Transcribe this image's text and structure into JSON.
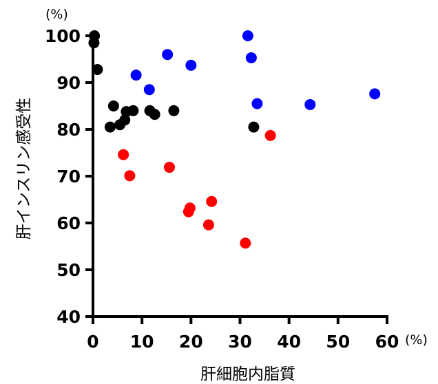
{
  "chart_data": {
    "type": "scatter",
    "title": "",
    "xlabel": "肝細胞内脂質",
    "ylabel": "肝インスリン感受性",
    "x_unit": "(%)",
    "y_unit": "(%)",
    "xlim": [
      0,
      60
    ],
    "ylim": [
      40,
      100
    ],
    "xticks": [
      "0",
      "10",
      "20",
      "30",
      "40",
      "50",
      "60"
    ],
    "yticks": [
      "40",
      "50",
      "60",
      "70",
      "80",
      "90",
      "100"
    ],
    "grid": false,
    "legend": "none",
    "series": [
      {
        "color": "#000000",
        "points": [
          {
            "x": 0.3,
            "y": 100.0
          },
          {
            "x": 0.2,
            "y": 98.5
          },
          {
            "x": 0.9,
            "y": 92.8
          },
          {
            "x": 4.2,
            "y": 85.0
          },
          {
            "x": 3.5,
            "y": 80.5
          },
          {
            "x": 5.5,
            "y": 81.0
          },
          {
            "x": 6.5,
            "y": 82.0
          },
          {
            "x": 6.8,
            "y": 83.8
          },
          {
            "x": 8.2,
            "y": 84.0
          },
          {
            "x": 11.6,
            "y": 84.0
          },
          {
            "x": 12.6,
            "y": 83.2
          },
          {
            "x": 16.5,
            "y": 84.0
          },
          {
            "x": 32.8,
            "y": 80.5
          }
        ]
      },
      {
        "color": "#0000ff",
        "points": [
          {
            "x": 15.2,
            "y": 96.0
          },
          {
            "x": 20.0,
            "y": 93.7
          },
          {
            "x": 8.8,
            "y": 91.6
          },
          {
            "x": 11.5,
            "y": 88.5
          },
          {
            "x": 31.6,
            "y": 100.0
          },
          {
            "x": 32.3,
            "y": 95.3
          },
          {
            "x": 33.5,
            "y": 85.5
          },
          {
            "x": 44.3,
            "y": 85.3
          },
          {
            "x": 57.5,
            "y": 87.6
          }
        ]
      },
      {
        "color": "#ff0000",
        "points": [
          {
            "x": 6.2,
            "y": 74.6
          },
          {
            "x": 7.5,
            "y": 70.1
          },
          {
            "x": 15.6,
            "y": 71.9
          },
          {
            "x": 36.2,
            "y": 78.7
          },
          {
            "x": 24.2,
            "y": 64.6
          },
          {
            "x": 19.8,
            "y": 63.2
          },
          {
            "x": 19.5,
            "y": 62.4
          },
          {
            "x": 23.6,
            "y": 59.6
          },
          {
            "x": 31.1,
            "y": 55.7
          }
        ]
      }
    ]
  }
}
